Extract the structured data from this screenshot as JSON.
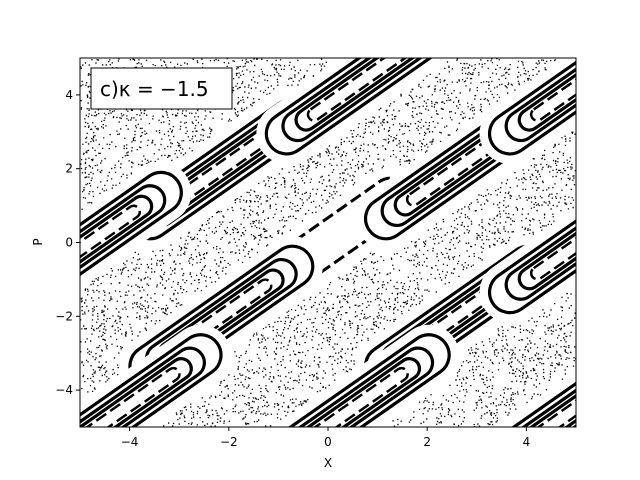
{
  "chart_data": {
    "type": "scatter",
    "title": "",
    "xlabel": "X",
    "ylabel": "P",
    "xlim": [
      -5,
      5
    ],
    "ylim": [
      -5,
      5
    ],
    "xticks": [
      -4,
      -2,
      0,
      2,
      4
    ],
    "yticks": [
      -4,
      -2,
      0,
      2,
      4
    ],
    "xtick_labels": [
      "−4",
      "−2",
      "0",
      "2",
      "4"
    ],
    "ytick_labels": [
      "−4",
      "−2",
      "0",
      "2",
      "4"
    ],
    "grid": false,
    "annotation": "c)κ = −1.5",
    "annotation_placement": "top-left",
    "marker_color": "#000000",
    "islands": [
      {
        "center": [
          0.0,
          0.0
        ],
        "half_length": 1.55,
        "width": 1.1
      },
      {
        "center": [
          -2.15,
          2.0
        ],
        "half_length": 1.75,
        "width": 1.1
      },
      {
        "center": [
          2.6,
          2.0
        ],
        "half_length": 1.75,
        "width": 1.1
      },
      {
        "center": [
          -2.15,
          -2.0
        ],
        "half_length": 1.75,
        "width": 1.1
      },
      {
        "center": [
          2.6,
          -2.0
        ],
        "half_length": 1.75,
        "width": 1.1
      },
      {
        "center": [
          -4.8,
          0.0
        ],
        "half_length": 1.75,
        "width": 1.1
      },
      {
        "center": [
          5.1,
          0.0
        ],
        "half_length": 1.75,
        "width": 1.1
      },
      {
        "center": [
          0.6,
          4.3
        ],
        "half_length": 1.75,
        "width": 1.1
      },
      {
        "center": [
          5.1,
          4.3
        ],
        "half_length": 1.75,
        "width": 1.1
      },
      {
        "center": [
          -4.0,
          -4.4
        ],
        "half_length": 1.75,
        "width": 1.1
      },
      {
        "center": [
          0.6,
          -4.4
        ],
        "half_length": 1.75,
        "width": 1.1
      },
      {
        "center": [
          5.1,
          -4.4
        ],
        "half_length": 1.75,
        "width": 1.1
      }
    ],
    "island_angle_deg": -35,
    "series": [
      {
        "values": "dense chaotic sea of scattered points covering the plane outside the stability islands"
      }
    ]
  }
}
